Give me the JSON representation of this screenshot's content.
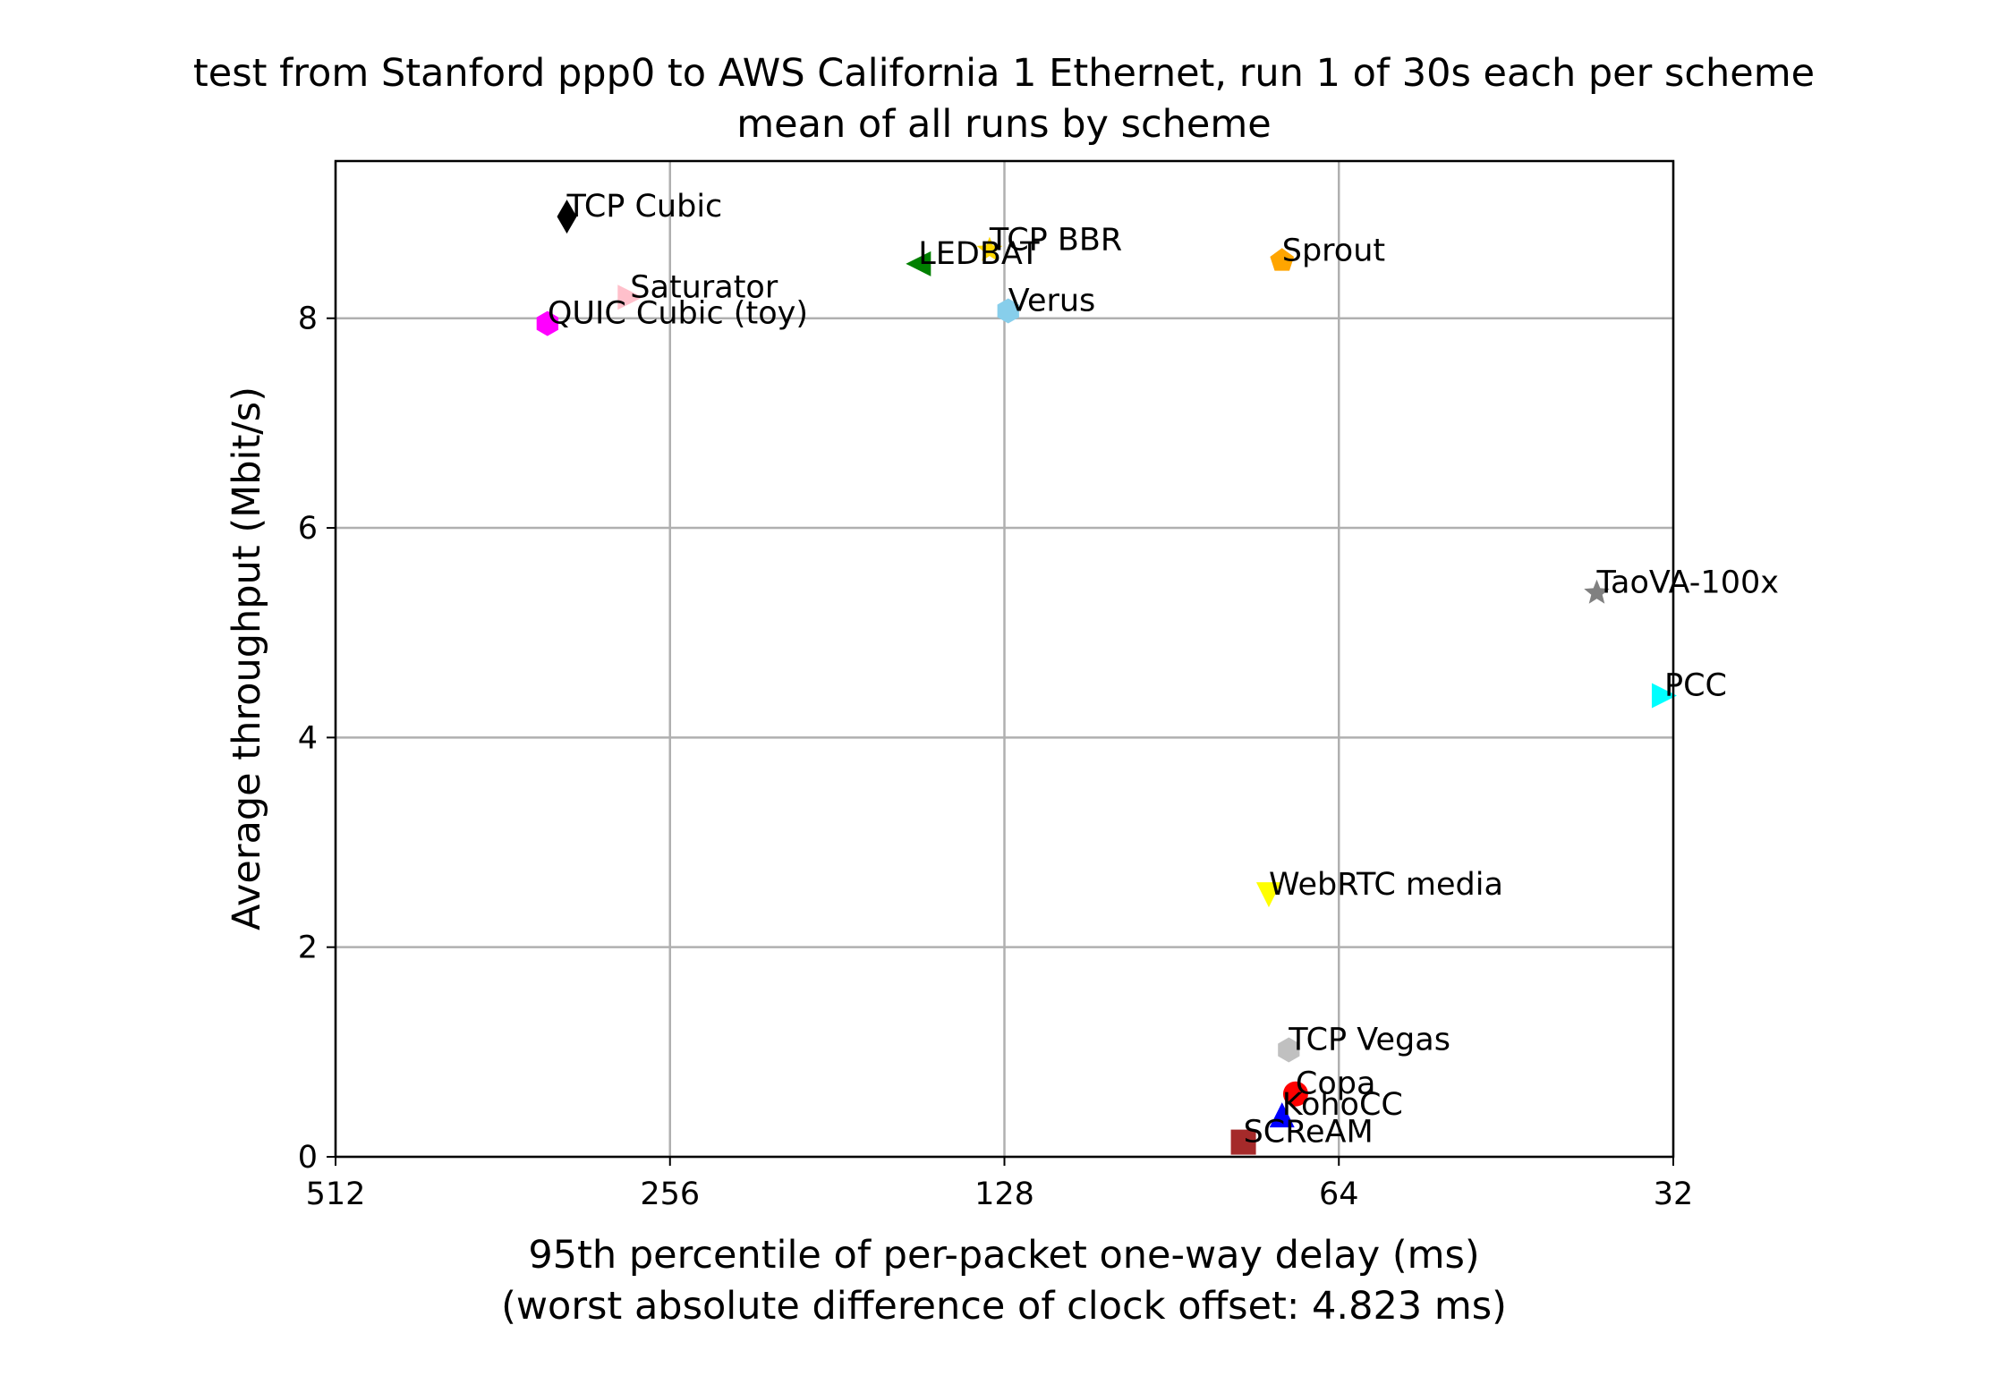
{
  "chart_data": {
    "type": "scatter",
    "title": "test from Stanford ppp0 to AWS California 1 Ethernet, run 1 of 30s each per scheme",
    "subtitle": "mean of all runs by scheme",
    "xlabel": "95th percentile of per-packet one-way delay (ms)",
    "xlabel_note": "(worst absolute difference of clock offset: 4.823 ms)",
    "ylabel": "Average throughput (Mbit/s)",
    "x_scale": "log2",
    "x_reversed": true,
    "xlim": [
      512,
      32
    ],
    "ylim": [
      0,
      9.5
    ],
    "x_ticks": [
      512,
      256,
      128,
      64,
      32
    ],
    "x_tick_labels": [
      "512",
      "256",
      "128",
      "64",
      "32"
    ],
    "y_ticks": [
      0,
      2,
      4,
      6,
      8
    ],
    "y_tick_labels": [
      "0",
      "2",
      "4",
      "6",
      "8"
    ],
    "grid": true,
    "series": [
      {
        "name": "TCP Cubic",
        "x": 317,
        "y": 8.97,
        "marker": "diamond-thin",
        "color": "#000000"
      },
      {
        "name": "Saturator",
        "x": 278,
        "y": 8.2,
        "marker": "triangle-right",
        "color": "#ffc0cb"
      },
      {
        "name": "QUIC Cubic (toy)",
        "x": 330,
        "y": 7.95,
        "marker": "hexagon",
        "color": "#ff00ff"
      },
      {
        "name": "LEDBAT",
        "x": 153,
        "y": 8.52,
        "marker": "triangle-left",
        "color": "#008000"
      },
      {
        "name": "TCP BBR",
        "x": 132,
        "y": 8.65,
        "marker": "star",
        "color": "#ffd700"
      },
      {
        "name": "Verus",
        "x": 127,
        "y": 8.07,
        "marker": "hexagon",
        "color": "#87ceeb"
      },
      {
        "name": "Sprout",
        "x": 72,
        "y": 8.55,
        "marker": "pentagon",
        "color": "#ffa500"
      },
      {
        "name": "TaoVA-100x",
        "x": 37.5,
        "y": 5.38,
        "marker": "star",
        "color": "#808080"
      },
      {
        "name": "PCC",
        "x": 32.6,
        "y": 4.4,
        "marker": "triangle-right",
        "color": "#00ffff"
      },
      {
        "name": "WebRTC media",
        "x": 74,
        "y": 2.5,
        "marker": "triangle-down",
        "color": "#ffff00"
      },
      {
        "name": "TCP Vegas",
        "x": 71,
        "y": 1.02,
        "marker": "hexagon",
        "color": "#c0c0c0"
      },
      {
        "name": "Copa",
        "x": 70,
        "y": 0.6,
        "marker": "circle",
        "color": "#ff0000"
      },
      {
        "name": "KohoCC",
        "x": 72,
        "y": 0.4,
        "marker": "triangle-up",
        "color": "#0000ff"
      },
      {
        "name": "SCReAM",
        "x": 78,
        "y": 0.14,
        "marker": "square",
        "color": "#a52a2a"
      }
    ]
  }
}
